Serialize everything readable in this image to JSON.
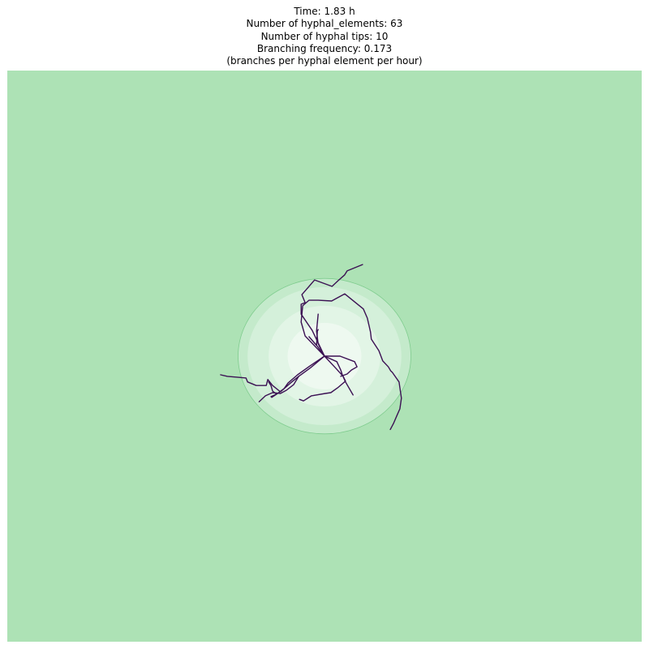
{
  "title_lines": [
    "Time: 1.83 h",
    "Number of hyphal_elements: 63",
    "Number of hyphal tips: 10",
    "Branching frequency: 0.173",
    "(branches per hyphal element per hour)"
  ],
  "chart_data": {
    "type": "line",
    "axes_visible": false,
    "colors": {
      "background_field": "#ade2b5",
      "contour_levels": [
        "#c4eacb",
        "#d4f0da",
        "#e2f5e6",
        "#eef9f0"
      ],
      "contour_edge": "#7fcc8e",
      "hyphae": "#3b1053"
    },
    "xlim": [
      -80,
      80
    ],
    "ylim": [
      -72,
      72
    ],
    "contours": [
      {
        "level": 1,
        "center": [
          0,
          0
        ],
        "rx": 21.8,
        "ry": 19.6
      },
      {
        "level": 2,
        "center": [
          0,
          0
        ],
        "rx": 19.4,
        "ry": 17.4
      },
      {
        "level": 3,
        "center": [
          0,
          0
        ],
        "rx": 14.1,
        "ry": 12.7
      },
      {
        "level": 4,
        "center": [
          0,
          0
        ],
        "rx": 9.3,
        "ry": 8.4
      }
    ],
    "hyphae": [
      {
        "points": [
          [
            0,
            0
          ],
          [
            -3.1,
            6.5
          ],
          [
            -5.9,
            10.6
          ],
          [
            -5.9,
            13.1
          ],
          [
            -4.9,
            13.5
          ],
          [
            -5.7,
            15.5
          ],
          [
            -2.5,
            19.2
          ],
          [
            1.9,
            17.6
          ],
          [
            3.4,
            19.0
          ],
          [
            5.1,
            20.5
          ],
          [
            5.7,
            21.5
          ],
          [
            9.6,
            23.1
          ]
        ]
      },
      {
        "points": [
          [
            0,
            0
          ],
          [
            -4.9,
            5.1
          ],
          [
            -5.9,
            8.6
          ],
          [
            -5.5,
            12.7
          ],
          [
            -3.9,
            14.1
          ],
          [
            -1.6,
            14.1
          ],
          [
            1.8,
            13.9
          ],
          [
            5.1,
            15.7
          ],
          [
            9.8,
            11.9
          ],
          [
            10.8,
            9.6
          ],
          [
            11.6,
            6.1
          ],
          [
            11.8,
            4.3
          ],
          [
            13.7,
            1.4
          ],
          [
            14.7,
            -1.2
          ],
          [
            16.1,
            -2.7
          ],
          [
            16.7,
            -3.7
          ],
          [
            17.1,
            -4.1
          ],
          [
            18.8,
            -6.5
          ],
          [
            19.4,
            -10.6
          ],
          [
            19.0,
            -13.3
          ],
          [
            18.2,
            -15.1
          ],
          [
            17.4,
            -17.0
          ],
          [
            16.6,
            -18.5
          ]
        ]
      },
      {
        "points": [
          [
            0,
            0
          ],
          [
            -1.6,
            3.1
          ],
          [
            -2.0,
            6.3
          ],
          [
            -1.6,
            10.6
          ]
        ]
      },
      {
        "points": [
          [
            0,
            0
          ],
          [
            -1.8,
            2.5
          ],
          [
            -3.9,
            4.9
          ],
          [
            -2.0,
            2.7
          ],
          [
            -1.8,
            6.3
          ],
          [
            -1.6,
            6.7
          ]
        ]
      },
      {
        "points": [
          [
            0,
            0
          ],
          [
            3.9,
            0.0
          ],
          [
            7.6,
            -1.4
          ],
          [
            8.2,
            -2.7
          ],
          [
            6.8,
            -3.5
          ],
          [
            5.7,
            -4.5
          ],
          [
            4.1,
            -5.1
          ]
        ]
      },
      {
        "points": [
          [
            0,
            0
          ],
          [
            3.1,
            -1.4
          ],
          [
            4.1,
            -3.5
          ],
          [
            4.5,
            -4.7
          ],
          [
            5.3,
            -6.5
          ],
          [
            7.2,
            -9.8
          ]
        ]
      },
      {
        "points": [
          [
            0,
            0
          ],
          [
            2.9,
            -3.1
          ],
          [
            4.7,
            -5.1
          ],
          [
            5.3,
            -6.3
          ],
          [
            3.3,
            -8.0
          ],
          [
            1.6,
            -9.2
          ],
          [
            0.2,
            -9.4
          ],
          [
            -3.3,
            -10.0
          ],
          [
            -5.3,
            -11.3
          ],
          [
            -6.3,
            -10.9
          ]
        ]
      },
      {
        "points": [
          [
            0,
            0
          ],
          [
            -3.7,
            -2.5
          ],
          [
            -6.8,
            -4.7
          ],
          [
            -9.2,
            -6.8
          ],
          [
            -10.2,
            -8.2
          ],
          [
            -12.1,
            -9.6
          ],
          [
            -13.5,
            -10.2
          ],
          [
            -13.3,
            -10.4
          ],
          [
            -12.1,
            -9.6
          ],
          [
            -13.1,
            -8.8
          ],
          [
            -13.5,
            -7.4
          ],
          [
            -14.1,
            -6.5
          ]
        ]
      },
      {
        "points": [
          [
            0,
            0
          ],
          [
            -3.5,
            -2.9
          ],
          [
            -6.5,
            -5.1
          ],
          [
            -7.8,
            -7.2
          ],
          [
            -9.6,
            -8.6
          ],
          [
            -11.1,
            -9.4
          ],
          [
            -13.1,
            -9.2
          ],
          [
            -14.9,
            -10.0
          ],
          [
            -16.5,
            -11.5
          ]
        ]
      },
      {
        "points": [
          [
            -6.5,
            -5.1
          ],
          [
            -8.6,
            -6.8
          ],
          [
            -11.1,
            -9.0
          ],
          [
            -13.1,
            -7.4
          ],
          [
            -14.3,
            -5.9
          ],
          [
            -14.7,
            -7.4
          ],
          [
            -17.2,
            -7.4
          ],
          [
            -19.4,
            -6.5
          ],
          [
            -19.8,
            -5.5
          ],
          [
            -22.1,
            -5.3
          ],
          [
            -24.5,
            -5.1
          ],
          [
            -26.2,
            -4.7
          ]
        ]
      }
    ]
  }
}
